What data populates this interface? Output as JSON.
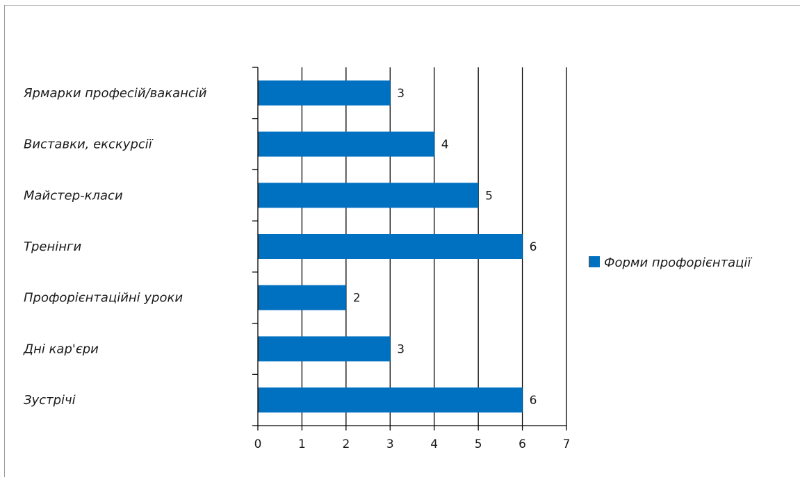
{
  "chart_data": {
    "type": "bar",
    "orientation": "horizontal",
    "categories": [
      "Ярмарки професій/вакансій",
      "Виставки, екскурсії",
      "Майстер-класи",
      "Тренінги",
      "Профорієнтаційні уроки",
      "Дні кар'єри",
      "Зустрічі"
    ],
    "series": [
      {
        "name": "Форми профорієнтації",
        "values": [
          3,
          4,
          5,
          6,
          2,
          3,
          6
        ],
        "color": "#0070c0"
      }
    ],
    "xlim": [
      0,
      7
    ],
    "x_ticks": [
      "0",
      "1",
      "2",
      "3",
      "4",
      "5",
      "6",
      "7"
    ],
    "grid": "vertical",
    "legend_position": "right",
    "data_labels": true,
    "title": "",
    "xlabel": "",
    "ylabel": ""
  }
}
